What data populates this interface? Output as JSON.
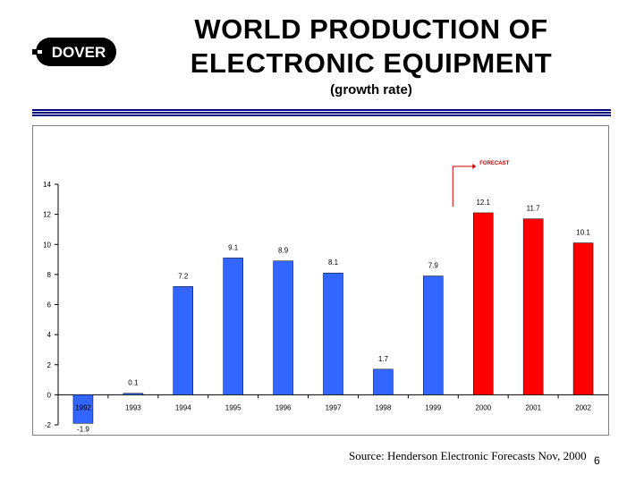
{
  "logo": {
    "text": "DOVER"
  },
  "title": {
    "line1": "WORLD PRODUCTION OF",
    "line2": "ELECTRONIC EQUIPMENT"
  },
  "subtitle": "(growth rate)",
  "source": "Source: Henderson Electronic Forecasts Nov, 2000",
  "slide_number": "6",
  "colors": {
    "actual": "#3366ff",
    "forecast": "#ff0000",
    "rule": "#000080"
  },
  "chart_data": {
    "type": "bar",
    "categories": [
      "1992",
      "1993",
      "1994",
      "1995",
      "1996",
      "1997",
      "1998",
      "1999",
      "2000",
      "2001",
      "2002"
    ],
    "values": [
      -1.9,
      0.1,
      7.2,
      9.1,
      8.9,
      8.1,
      1.7,
      7.9,
      12.1,
      11.7,
      10.1
    ],
    "data_labels": [
      "-1.9",
      "0.1",
      "7.2",
      "9.1",
      "8.9",
      "8.1",
      "1.7",
      "7.9",
      "12.1",
      "11.7",
      "10.1"
    ],
    "forecast_start_index": 8,
    "annotation": "FORECAST",
    "ylim": [
      -2,
      14
    ],
    "yticks": [
      -2,
      0,
      2,
      4,
      6,
      8,
      10,
      12,
      14
    ],
    "xlabel": "",
    "ylabel": "",
    "grid": false
  }
}
